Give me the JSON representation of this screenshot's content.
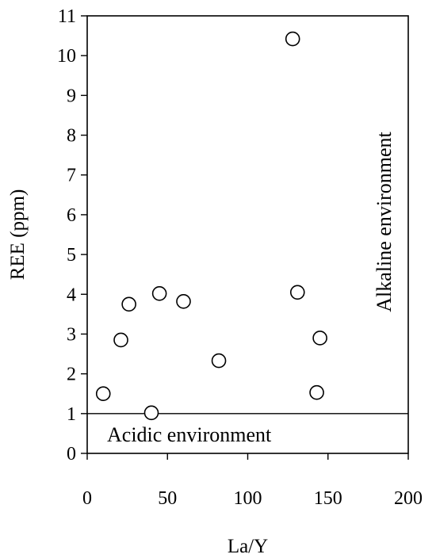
{
  "chart_data": {
    "type": "scatter",
    "xlabel": "La/Y",
    "ylabel": "REE (ppm)",
    "xlim": [
      0,
      200
    ],
    "ylim": [
      0,
      11
    ],
    "x_ticks": [
      0,
      50,
      100,
      150,
      200
    ],
    "y_ticks": [
      0,
      1,
      2,
      3,
      4,
      5,
      6,
      7,
      8,
      9,
      10,
      11
    ],
    "grid": false,
    "points": [
      {
        "x": 10,
        "y": 1.5
      },
      {
        "x": 21,
        "y": 2.85
      },
      {
        "x": 26,
        "y": 3.75
      },
      {
        "x": 40,
        "y": 1.02
      },
      {
        "x": 45,
        "y": 4.02
      },
      {
        "x": 60,
        "y": 3.82
      },
      {
        "x": 82,
        "y": 2.33
      },
      {
        "x": 128,
        "y": 10.42
      },
      {
        "x": 131,
        "y": 4.05
      },
      {
        "x": 143,
        "y": 1.53
      },
      {
        "x": 145,
        "y": 2.9
      }
    ],
    "reference_line": {
      "y": 1
    },
    "annotations": {
      "acidic": "Acidic environment",
      "alkaline": "Alkaline environment"
    },
    "marker": "open-circle",
    "colors": {
      "ink": "#000000",
      "background": "#ffffff"
    }
  }
}
